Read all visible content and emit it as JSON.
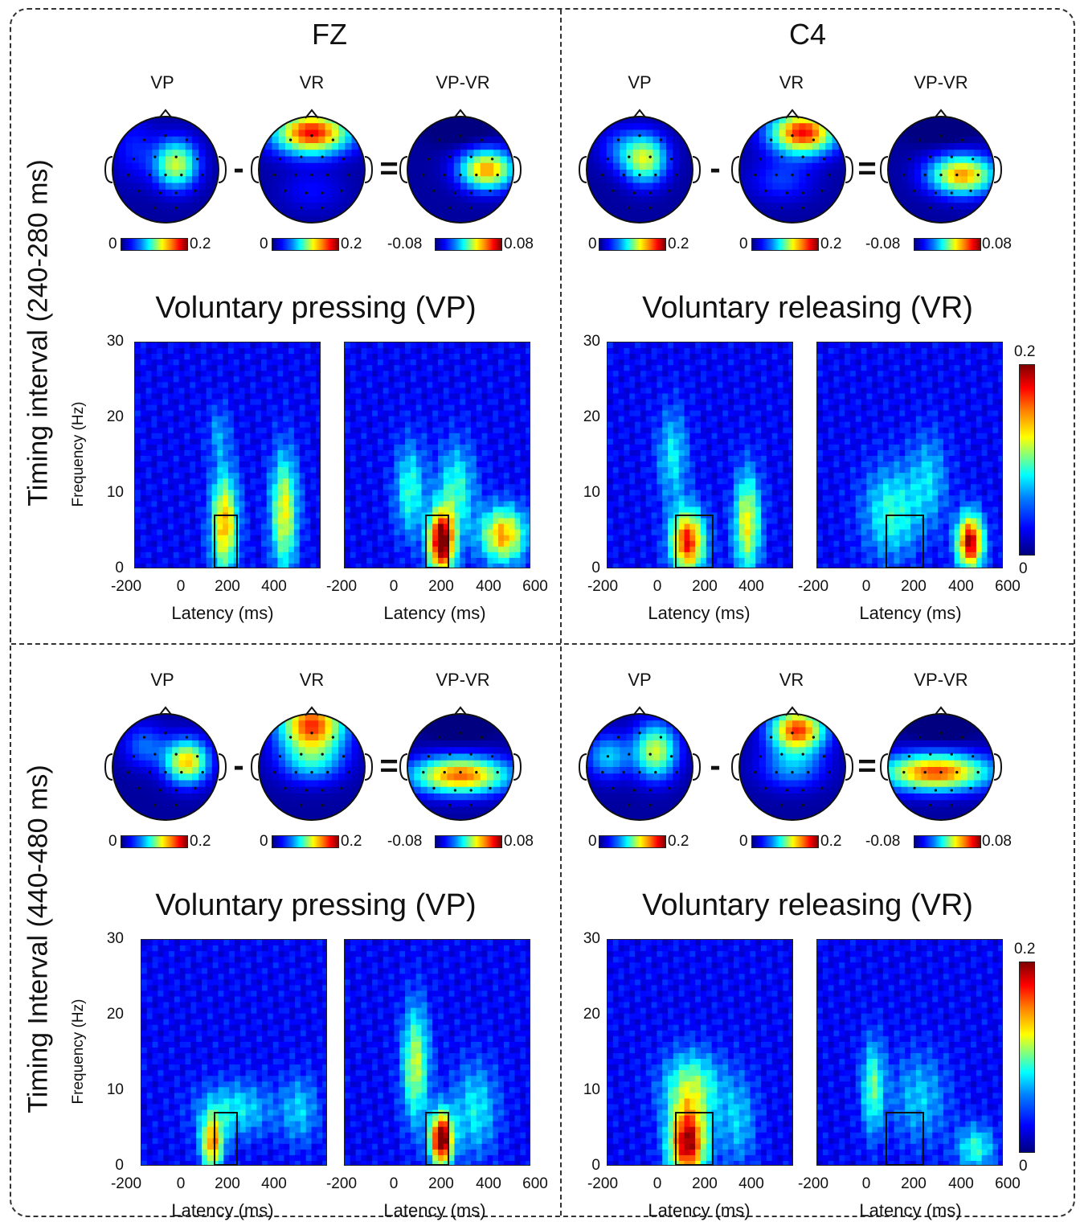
{
  "columns": {
    "left_title": "FZ",
    "right_title": "C4"
  },
  "rows": [
    {
      "label": "Timing interval (240-280 ms)"
    },
    {
      "label": "Timing Interval (440-480 ms)"
    }
  ],
  "topo_labels": [
    "VP",
    "VR",
    "VP-VR"
  ],
  "operators": {
    "minus": "-",
    "equals": "="
  },
  "topo_colorbars": {
    "vp": {
      "min": "0",
      "max": "0.2"
    },
    "vr": {
      "min": "0",
      "max": "0.2"
    },
    "diff": {
      "min": "-0.08",
      "max": "0.08"
    }
  },
  "section_titles": {
    "left": "Voluntary pressing (VP)",
    "right": "Voluntary releasing (VR)"
  },
  "axes": {
    "xlabel": "Latency (ms)",
    "ylabel": "Frequency (Hz)",
    "x_ticks_with_600": [
      "-200",
      "0",
      "200",
      "400",
      "600"
    ],
    "x_ticks_no_600": [
      "-200",
      "0",
      "200",
      "400"
    ],
    "y_ticks": [
      "30",
      "20",
      "10",
      "0"
    ]
  },
  "tf_colorbar": {
    "max": "0.2",
    "min": "0"
  },
  "colors": {
    "frame": "#333333",
    "colormap": "jet"
  },
  "chart_data": {
    "type": "heatmap",
    "colormap": "jet",
    "x_range": [
      -200,
      600
    ],
    "y_range": [
      0,
      30
    ],
    "color_range": [
      0,
      0.2
    ],
    "panels": [
      {
        "electrode": "FZ",
        "condition": "VP",
        "interval": "240-280 ms",
        "roi_ms": [
          140,
          240
        ],
        "roi_hz": [
          0,
          7
        ]
      },
      {
        "electrode": "FZ",
        "condition": "VR",
        "interval": "240-280 ms",
        "roi_ms": [
          140,
          240
        ],
        "roi_hz": [
          0,
          7
        ]
      },
      {
        "electrode": "C4",
        "condition": "VP",
        "interval": "240-280 ms",
        "roi_ms": [
          90,
          240
        ],
        "roi_hz": [
          0,
          7
        ]
      },
      {
        "electrode": "C4",
        "condition": "VR",
        "interval": "240-280 ms",
        "roi_ms": [
          90,
          240
        ],
        "roi_hz": [
          0,
          7
        ]
      },
      {
        "electrode": "FZ",
        "condition": "VP",
        "interval": "440-480 ms",
        "roi_ms": [
          150,
          260
        ],
        "roi_hz": [
          0,
          7
        ]
      },
      {
        "electrode": "FZ",
        "condition": "VR",
        "interval": "440-480 ms",
        "roi_ms": [
          150,
          260
        ],
        "roi_hz": [
          0,
          7
        ]
      },
      {
        "electrode": "C4",
        "condition": "VP",
        "interval": "440-480 ms",
        "roi_ms": [
          100,
          260
        ],
        "roi_hz": [
          0,
          7
        ]
      },
      {
        "electrode": "C4",
        "condition": "VR",
        "interval": "440-480 ms",
        "roi_ms": [
          100,
          260
        ],
        "roi_hz": [
          0,
          7
        ]
      }
    ]
  }
}
